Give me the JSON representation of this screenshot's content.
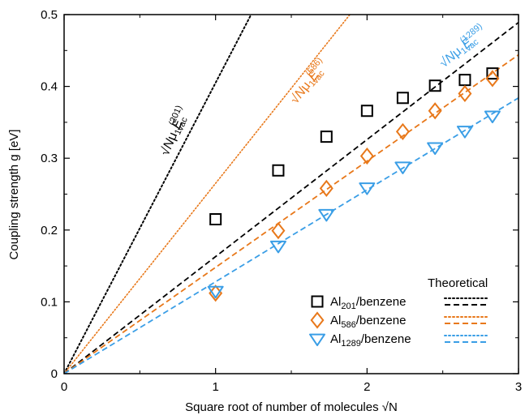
{
  "chart_data": {
    "type": "scatter",
    "xlabel": "Square root of number of molecules √N",
    "ylabel": "Coupling strength g [eV]",
    "xlim": [
      0,
      3
    ],
    "ylim": [
      0,
      0.5
    ],
    "xticks": [
      "0",
      "1",
      "2",
      "3"
    ],
    "yticks": [
      "0",
      "0.1",
      "0.2",
      "0.3",
      "0.4",
      "0.5"
    ],
    "grid": false,
    "legend_position": "bottom-right",
    "legend_header": "Theoretical",
    "series": [
      {
        "name": "Al201/benzene",
        "name_base": "Al",
        "name_sub": "201",
        "name_rest": "/benzene",
        "marker": "square",
        "color": "#000000",
        "x": [
          1.0,
          1.414,
          1.732,
          2.0,
          2.236,
          2.449,
          2.646,
          2.828
        ],
        "y": [
          0.215,
          0.283,
          0.33,
          0.366,
          0.384,
          0.401,
          0.409,
          0.418
        ],
        "fit_slope": 0.163
      },
      {
        "name": "Al586/benzene",
        "name_base": "Al",
        "name_sub": "586",
        "name_rest": "/benzene",
        "marker": "diamond",
        "color": "#e8781a",
        "x": [
          1.0,
          1.414,
          1.732,
          2.0,
          2.236,
          2.449,
          2.646,
          2.828
        ],
        "y": [
          0.112,
          0.199,
          0.258,
          0.303,
          0.337,
          0.366,
          0.39,
          0.411
        ],
        "fit_slope": 0.148
      },
      {
        "name": "Al1289/benzene",
        "name_base": "Al",
        "name_sub": "1289",
        "name_rest": "/benzene",
        "marker": "triangle-down",
        "color": "#3a9ee6",
        "x": [
          1.0,
          1.414,
          1.732,
          2.0,
          2.236,
          2.449,
          2.646,
          2.828
        ],
        "y": [
          0.115,
          0.178,
          0.222,
          0.259,
          0.288,
          0.315,
          0.338,
          0.359
        ],
        "fit_slope": 0.128
      }
    ],
    "theoretical_lines": [
      {
        "color": "#000000",
        "slope": 0.405,
        "label_sub": "201"
      },
      {
        "color": "#e8781a",
        "slope": 0.265,
        "label_sub": "586"
      }
    ]
  }
}
